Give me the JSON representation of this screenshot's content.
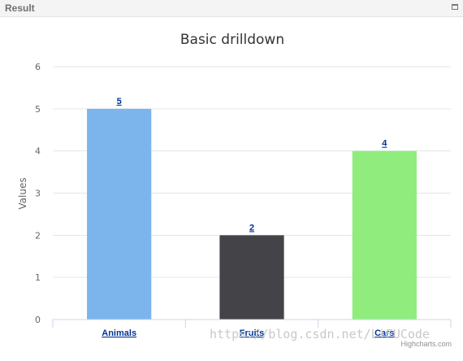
{
  "panel": {
    "title": "Result"
  },
  "chart_data": {
    "type": "bar",
    "title": "Basic drilldown",
    "ylabel": "Values",
    "xlabel": "",
    "categories": [
      "Animals",
      "Fruits",
      "Cars"
    ],
    "values": [
      5,
      2,
      4
    ],
    "colors": [
      "#7cb5ec",
      "#434348",
      "#90ed7d"
    ],
    "ylim": [
      0,
      6
    ],
    "yticks": [
      0,
      1,
      2,
      3,
      4,
      5,
      6
    ],
    "grid": true,
    "legend": false
  },
  "credits": "Highcharts.com",
  "watermark": "https://blog.csdn.net/LiFUCode"
}
